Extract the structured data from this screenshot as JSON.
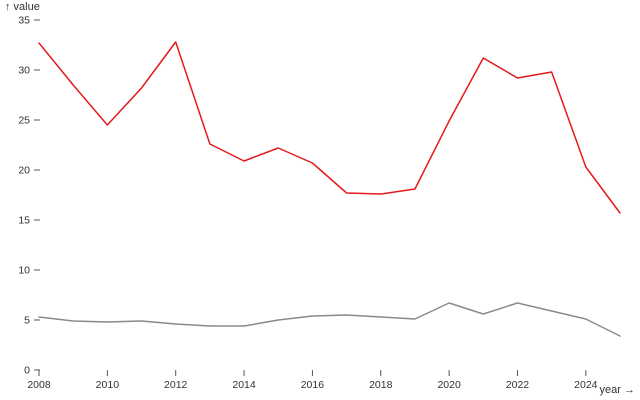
{
  "chart": {
    "y_axis_label": "↑ value",
    "x_axis_label": "year →",
    "background": "#ffffff",
    "axis_text_color": "#333333",
    "tick_mark_color": "#555555"
  },
  "chart_data": {
    "type": "line",
    "title": "",
    "xlabel": "year",
    "ylabel": "value",
    "x": [
      2008,
      2009,
      2010,
      2011,
      2012,
      2013,
      2014,
      2015,
      2016,
      2017,
      2018,
      2019,
      2020,
      2021,
      2022,
      2023,
      2024,
      2025
    ],
    "series": [
      {
        "name": "red-series",
        "color": "#e41a1c",
        "values": [
          32.7,
          28.5,
          24.5,
          28.2,
          32.8,
          22.6,
          20.9,
          22.2,
          20.7,
          17.7,
          17.6,
          18.1,
          24.9,
          31.2,
          29.2,
          29.8,
          20.3,
          15.7
        ]
      },
      {
        "name": "gray-series",
        "color": "#8a8a8a",
        "values": [
          5.3,
          4.9,
          4.8,
          4.9,
          4.6,
          4.4,
          4.4,
          5.0,
          5.4,
          5.5,
          5.3,
          5.1,
          6.7,
          5.6,
          6.7,
          5.9,
          5.1,
          3.4
        ]
      }
    ],
    "xlim": [
      2008,
      2025
    ],
    "ylim": [
      0,
      35
    ],
    "x_ticks": [
      2008,
      2010,
      2012,
      2014,
      2016,
      2018,
      2020,
      2022,
      2024
    ],
    "y_ticks": [
      0,
      5,
      10,
      15,
      20,
      25,
      30,
      35
    ],
    "grid": false,
    "legend": false
  }
}
